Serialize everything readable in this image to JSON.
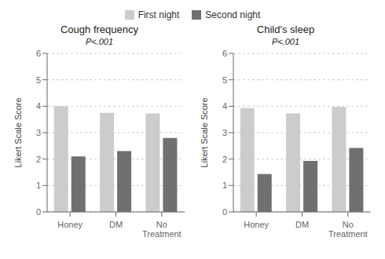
{
  "chart_data": [
    {
      "type": "bar",
      "title": "Cough frequency",
      "subtitle": "P<.001",
      "categories": [
        "Honey",
        "DM",
        "No\nTreatment"
      ],
      "series": [
        {
          "name": "First night",
          "color": "#cccccc",
          "values": [
            4.0,
            3.75,
            3.73
          ]
        },
        {
          "name": "Second night",
          "color": "#707070",
          "values": [
            2.1,
            2.3,
            2.8
          ]
        }
      ],
      "ylabel": "Likert Scale Score",
      "ylim": [
        0,
        6
      ],
      "yticks": [
        0,
        1,
        2,
        3,
        4,
        5,
        6
      ],
      "legend": "top"
    },
    {
      "type": "bar",
      "title": "Child's sleep",
      "subtitle": "P<.001",
      "categories": [
        "Honey",
        "DM",
        "No\nTreatment"
      ],
      "series": [
        {
          "name": "First night",
          "color": "#cccccc",
          "values": [
            3.93,
            3.73,
            3.97
          ]
        },
        {
          "name": "Second night",
          "color": "#707070",
          "values": [
            1.43,
            1.93,
            2.42
          ]
        }
      ],
      "ylabel": "Likert Scale Score",
      "ylim": [
        0,
        6
      ],
      "yticks": [
        0,
        1,
        2,
        3,
        4,
        5,
        6
      ],
      "legend": "top"
    }
  ]
}
